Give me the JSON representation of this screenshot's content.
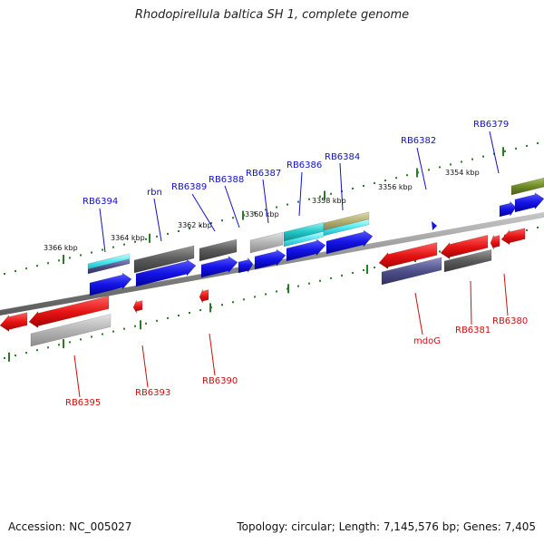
{
  "title": "Rhodopirellula baltica SH 1, complete genome",
  "footer": {
    "accession_label": "Accession:",
    "accession": "NC_005027",
    "topology_label": "Topology:",
    "topology": "circular",
    "length_label": "Length:",
    "length": "7,145,576 bp",
    "genes_label": "Genes:",
    "genes": "7,405"
  },
  "colors": {
    "backbone": "#8a8a8a",
    "tick": "#2a7a2a",
    "forward_label": "#1010cc",
    "reverse_label": "#cc1010",
    "blue": "#1414e6",
    "red": "#e61414",
    "gray_dark": "#5a5a5a",
    "gray_light": "#b4b4b4",
    "cyan": "#20c8c8",
    "aqua": "#50e8f0",
    "khaki": "#b4b070",
    "olive": "#6e8a28",
    "slate": "#50508a"
  },
  "scale_labels": [
    "3366 kbp",
    "3364 kbp",
    "3362 kbp",
    "3360 kbp",
    "3358 kbp",
    "3356 kbp",
    "3354 kbp"
  ],
  "forward_gene_labels": [
    "RB6394",
    "rbn",
    "RB6389",
    "RB6388",
    "RB6387",
    "RB6386",
    "RB6384",
    "RB6382",
    "RB6379"
  ],
  "reverse_gene_labels": [
    "RB6395",
    "RB6393",
    "RB6390",
    "mdoG",
    "RB6381",
    "RB6380"
  ]
}
